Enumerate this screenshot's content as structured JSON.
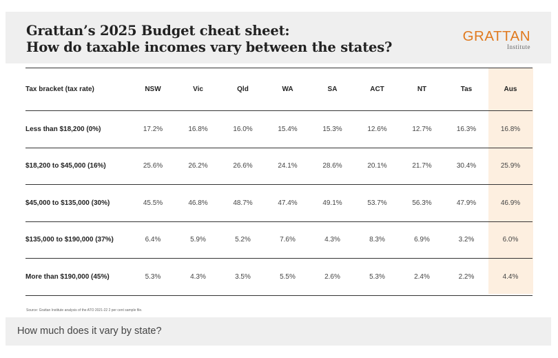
{
  "header": {
    "title_line1": "Grattan’s 2025 Budget cheat sheet:",
    "title_line2": "How do taxable incomes vary between the states?",
    "logo_word": "GRATTAN",
    "logo_sub": "Institute"
  },
  "table": {
    "columns": [
      "Tax bracket (tax rate)",
      "NSW",
      "Vic",
      "Qld",
      "WA",
      "SA",
      "ACT",
      "NT",
      "Tas",
      "Aus"
    ],
    "rows": [
      {
        "label": "Less than $18,200 (0%)",
        "values": [
          "17.2%",
          "16.8%",
          "16.0%",
          "15.4%",
          "15.3%",
          "12.6%",
          "12.7%",
          "16.3%",
          "16.8%"
        ]
      },
      {
        "label": "$18,200 to $45,000 (16%)",
        "values": [
          "25.6%",
          "26.2%",
          "26.6%",
          "24.1%",
          "28.6%",
          "20.1%",
          "21.7%",
          "30.4%",
          "25.9%"
        ]
      },
      {
        "label": "$45,000 to $135,000 (30%)",
        "values": [
          "45.5%",
          "46.8%",
          "48.7%",
          "47.4%",
          "49.1%",
          "53.7%",
          "56.3%",
          "47.9%",
          "46.9%"
        ]
      },
      {
        "label": "$135,000 to $190,000 (37%)",
        "values": [
          "6.4%",
          "5.9%",
          "5.2%",
          "7.6%",
          "4.3%",
          "8.3%",
          "6.9%",
          "3.2%",
          "6.0%"
        ]
      },
      {
        "label": "More than $190,000 (45%)",
        "values": [
          "5.3%",
          "4.3%",
          "3.5%",
          "5.5%",
          "2.6%",
          "5.3%",
          "2.4%",
          "2.2%",
          "4.4%"
        ]
      }
    ],
    "highlight_color": "#fdefe0"
  },
  "source": "Source: Grattan Institute analysis of the ATO 2021-22 2 per cent sample file.",
  "footer": {
    "question": "How much does it vary by state?"
  },
  "colors": {
    "brand": "#e07a1f",
    "header_bg": "#efefef"
  }
}
